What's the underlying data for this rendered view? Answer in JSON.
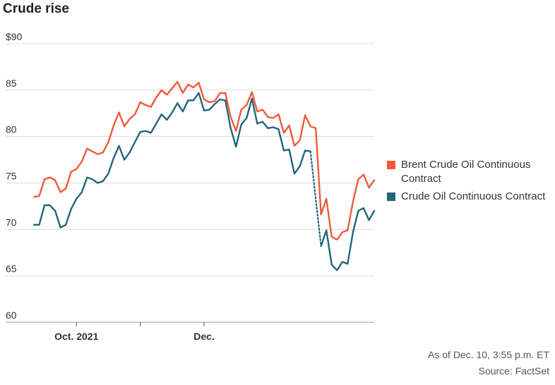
{
  "title": "Crude rise",
  "legend": [
    {
      "name": "Brent Crude Oil Continuous Contract",
      "color": "#f05a3b"
    },
    {
      "name": "Crude Oil Continuous Contract",
      "color": "#23657a"
    }
  ],
  "footer": {
    "as_of": "As of Dec. 10, 3:55 p.m. ET",
    "source": "Source: FactSet"
  },
  "chart_data": {
    "type": "line",
    "title": "Crude rise",
    "xlabel": "",
    "ylabel": "",
    "ylim": [
      60,
      90
    ],
    "yticks": [
      60,
      65,
      70,
      75,
      80,
      85,
      90
    ],
    "ytick_labels": [
      "60",
      "65",
      "70",
      "75",
      "80",
      "85",
      "$90"
    ],
    "xticks": [
      {
        "index": 8,
        "label": "Oct. 2021"
      },
      {
        "index": 20,
        "label": ""
      },
      {
        "index": 32,
        "label": "Dec."
      }
    ],
    "grid": true,
    "legend_position": "right",
    "series": [
      {
        "name": "Brent Crude Oil Continuous Contract",
        "color": "#f05a3b",
        "values": [
          73.5,
          73.6,
          75.4,
          75.6,
          75.3,
          74,
          74.4,
          76.2,
          76.5,
          77.3,
          78.7,
          78.4,
          78.1,
          78.3,
          79.4,
          81.2,
          82.6,
          81.1,
          81.9,
          82.4,
          83.7,
          83.4,
          83.2,
          84.2,
          85,
          84.5,
          85.2,
          85.9,
          84.7,
          85.6,
          85.3,
          85.8,
          84,
          83.7,
          83.8,
          84.7,
          84.7,
          82.1,
          80.6,
          82.9,
          83.4,
          84.8,
          82.7,
          82.9,
          82.1,
          82,
          82.4,
          80.4,
          81.2,
          79,
          79.6,
          82.3,
          81.1,
          80.9,
          71.6,
          73.3,
          69.2,
          68.9,
          69.7,
          69.9,
          73,
          75.4,
          75.9,
          74.5,
          75.3
        ]
      },
      {
        "name": "Crude Oil Continuous Contract",
        "color": "#23657a",
        "values": [
          70.5,
          70.5,
          72.6,
          72.6,
          72,
          70.2,
          70.5,
          72.2,
          73.3,
          74,
          75.6,
          75.4,
          75,
          75.2,
          76,
          77.7,
          79,
          77.5,
          78.3,
          79.4,
          80.5,
          80.6,
          80.4,
          81.4,
          82.4,
          81.8,
          82.6,
          83.6,
          82.7,
          83.9,
          83.9,
          84.7,
          82.8,
          82.9,
          83.5,
          84,
          83.9,
          80.9,
          78.9,
          81.3,
          82,
          84.1,
          81.4,
          81.6,
          80.9,
          81,
          80.8,
          78.5,
          78.6,
          76,
          76.8,
          78.5,
          78.4,
          null,
          68.2,
          69.9,
          66.2,
          65.6,
          66.5,
          66.3,
          69.7,
          72,
          72.3,
          71,
          72
        ]
      }
    ]
  }
}
